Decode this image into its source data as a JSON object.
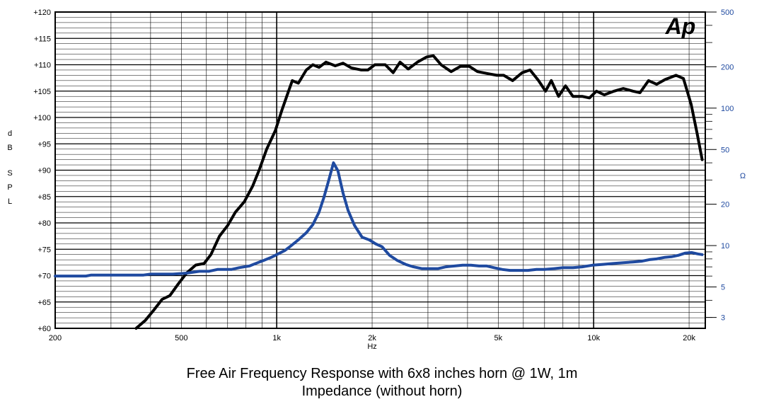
{
  "captions": {
    "line1": "Free Air Frequency Response with 6x8 inches horn @ 1W, 1m",
    "line2": "Impedance (without horn)"
  },
  "logo": {
    "text": "Ap"
  },
  "colors": {
    "spl": "#000000",
    "impedance": "#1f4aa0",
    "grid": "#000000",
    "right_axis_text": "#1f4aa0"
  },
  "chart_data": {
    "type": "line",
    "x_scale": "log",
    "y_scale": "linear",
    "y2_scale": "log",
    "xlim": [
      200,
      22500
    ],
    "ylim": [
      60,
      120
    ],
    "y2lim": [
      2.5,
      500
    ],
    "grid": true,
    "xlabel": "Hz",
    "ylabel": [
      "d",
      "B",
      "S",
      "P",
      "L"
    ],
    "y2label": "Ω",
    "x_ticks": [
      {
        "value": 200,
        "label": "200"
      },
      {
        "value": 500,
        "label": "500"
      },
      {
        "value": 1000,
        "label": "1k"
      },
      {
        "value": 2000,
        "label": "2k"
      },
      {
        "value": 5000,
        "label": "5k"
      },
      {
        "value": 10000,
        "label": "10k"
      },
      {
        "value": 20000,
        "label": "20k"
      }
    ],
    "y_ticks": [
      {
        "value": 120,
        "label": "+120"
      },
      {
        "value": 115,
        "label": "+115"
      },
      {
        "value": 110,
        "label": "+110"
      },
      {
        "value": 105,
        "label": "+105"
      },
      {
        "value": 100,
        "label": "+100"
      },
      {
        "value": 95,
        "label": "+95"
      },
      {
        "value": 90,
        "label": "+90"
      },
      {
        "value": 85,
        "label": "+85"
      },
      {
        "value": 80,
        "label": "+80"
      },
      {
        "value": 75,
        "label": "+75"
      },
      {
        "value": 70,
        "label": "+70"
      },
      {
        "value": 65,
        "label": "+65"
      },
      {
        "value": 60,
        "label": "+60"
      }
    ],
    "y2_ticks": [
      {
        "value": 500,
        "label": "500"
      },
      {
        "value": 200,
        "label": "200"
      },
      {
        "value": 100,
        "label": "100"
      },
      {
        "value": 50,
        "label": "50"
      },
      {
        "value": 20,
        "label": "20"
      },
      {
        "value": 10,
        "label": "10"
      },
      {
        "value": 5,
        "label": "5"
      },
      {
        "value": 3,
        "label": "3"
      }
    ],
    "series": [
      {
        "axis": "left",
        "color": "#000000",
        "points": [
          [
            360,
            60
          ],
          [
            385,
            61.5
          ],
          [
            410,
            63.5
          ],
          [
            435,
            65.5
          ],
          [
            460,
            66.2
          ],
          [
            490,
            68.5
          ],
          [
            520,
            70.5
          ],
          [
            555,
            72
          ],
          [
            590,
            72.3
          ],
          [
            620,
            74
          ],
          [
            660,
            77.5
          ],
          [
            700,
            79.5
          ],
          [
            740,
            82
          ],
          [
            790,
            84
          ],
          [
            840,
            87
          ],
          [
            880,
            90
          ],
          [
            930,
            94
          ],
          [
            990,
            97.5
          ],
          [
            1040,
            101.5
          ],
          [
            1090,
            105
          ],
          [
            1120,
            107
          ],
          [
            1170,
            106.5
          ],
          [
            1240,
            109
          ],
          [
            1300,
            110
          ],
          [
            1360,
            109.5
          ],
          [
            1430,
            110.5
          ],
          [
            1530,
            109.8
          ],
          [
            1620,
            110.3
          ],
          [
            1720,
            109.4
          ],
          [
            1850,
            109
          ],
          [
            1940,
            109
          ],
          [
            2040,
            110
          ],
          [
            2200,
            110
          ],
          [
            2330,
            108.5
          ],
          [
            2450,
            110.5
          ],
          [
            2600,
            109.2
          ],
          [
            2780,
            110.5
          ],
          [
            2980,
            111.5
          ],
          [
            3120,
            111.7
          ],
          [
            3300,
            110
          ],
          [
            3550,
            108.7
          ],
          [
            3800,
            109.7
          ],
          [
            4050,
            109.7
          ],
          [
            4300,
            108.7
          ],
          [
            4650,
            108.3
          ],
          [
            4950,
            108
          ],
          [
            5200,
            108
          ],
          [
            5550,
            107
          ],
          [
            5950,
            108.5
          ],
          [
            6300,
            109
          ],
          [
            6700,
            107
          ],
          [
            7050,
            105
          ],
          [
            7350,
            107
          ],
          [
            7750,
            104
          ],
          [
            8150,
            106
          ],
          [
            8600,
            104
          ],
          [
            9200,
            104
          ],
          [
            9700,
            103.7
          ],
          [
            10200,
            105
          ],
          [
            10800,
            104.3
          ],
          [
            11600,
            105
          ],
          [
            12400,
            105.5
          ],
          [
            13300,
            105
          ],
          [
            14000,
            104.7
          ],
          [
            14900,
            107
          ],
          [
            15800,
            106.3
          ],
          [
            16800,
            107.2
          ],
          [
            18200,
            108
          ],
          [
            19200,
            107.4
          ],
          [
            20300,
            102.5
          ],
          [
            21200,
            97
          ],
          [
            22000,
            92
          ]
        ]
      },
      {
        "axis": "right",
        "color": "#1f4aa0",
        "points": [
          [
            200,
            6
          ],
          [
            250,
            6
          ],
          [
            260,
            6.1
          ],
          [
            300,
            6.1
          ],
          [
            380,
            6.1
          ],
          [
            400,
            6.2
          ],
          [
            470,
            6.2
          ],
          [
            520,
            6.3
          ],
          [
            570,
            6.5
          ],
          [
            610,
            6.5
          ],
          [
            650,
            6.7
          ],
          [
            720,
            6.7
          ],
          [
            760,
            6.9
          ],
          [
            820,
            7.1
          ],
          [
            870,
            7.5
          ],
          [
            910,
            7.8
          ],
          [
            960,
            8.2
          ],
          [
            1010,
            8.7
          ],
          [
            1060,
            9.2
          ],
          [
            1100,
            9.8
          ],
          [
            1170,
            11
          ],
          [
            1240,
            12.4
          ],
          [
            1300,
            14.2
          ],
          [
            1360,
            17.5
          ],
          [
            1410,
            22.5
          ],
          [
            1460,
            30
          ],
          [
            1510,
            40
          ],
          [
            1560,
            35
          ],
          [
            1620,
            24
          ],
          [
            1680,
            18
          ],
          [
            1760,
            14
          ],
          [
            1860,
            11.5
          ],
          [
            1960,
            11
          ],
          [
            2050,
            10.3
          ],
          [
            2150,
            9.8
          ],
          [
            2270,
            8.5
          ],
          [
            2400,
            7.8
          ],
          [
            2550,
            7.3
          ],
          [
            2700,
            7
          ],
          [
            2870,
            6.8
          ],
          [
            3050,
            6.8
          ],
          [
            3230,
            6.8
          ],
          [
            3420,
            7
          ],
          [
            3640,
            7.1
          ],
          [
            3860,
            7.2
          ],
          [
            4100,
            7.2
          ],
          [
            4350,
            7.1
          ],
          [
            4600,
            7.1
          ],
          [
            4850,
            6.9
          ],
          [
            5150,
            6.7
          ],
          [
            5450,
            6.6
          ],
          [
            5800,
            6.6
          ],
          [
            6200,
            6.6
          ],
          [
            6600,
            6.7
          ],
          [
            7000,
            6.7
          ],
          [
            7500,
            6.8
          ],
          [
            8000,
            6.9
          ],
          [
            8600,
            6.9
          ],
          [
            9200,
            7
          ],
          [
            9900,
            7.2
          ],
          [
            10700,
            7.3
          ],
          [
            11500,
            7.4
          ],
          [
            12400,
            7.5
          ],
          [
            13300,
            7.6
          ],
          [
            14200,
            7.7
          ],
          [
            15000,
            7.9
          ],
          [
            15800,
            8
          ],
          [
            16700,
            8.2
          ],
          [
            17600,
            8.3
          ],
          [
            18500,
            8.5
          ],
          [
            19400,
            8.8
          ],
          [
            20400,
            8.9
          ],
          [
            21300,
            8.7
          ],
          [
            22000,
            8.6
          ]
        ]
      }
    ]
  }
}
